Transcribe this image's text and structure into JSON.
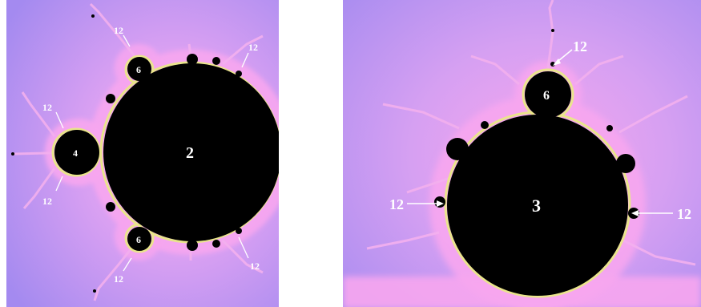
{
  "figure": {
    "colors": {
      "exterior": "#b38cf2",
      "fringe": "#f7a6f0",
      "edge": "#e8f07a",
      "set": "#000000",
      "label": "#ffffff"
    },
    "left_panel": {
      "main_cardioid_label": "2",
      "bulb_left_label": "4",
      "bulb_top_label": "6",
      "bulb_bottom_label": "6",
      "callout_top_left": "12",
      "callout_top_center": "12",
      "callout_top_right": "12",
      "callout_left_upper": "12",
      "callout_left_lower": "12",
      "callout_bottom_center": "12",
      "callout_bottom_right": "12"
    },
    "right_panel": {
      "main_bulb_label": "3",
      "top_bulb_label": "6",
      "callout_top": "12",
      "callout_left": "12",
      "callout_right": "12"
    }
  }
}
